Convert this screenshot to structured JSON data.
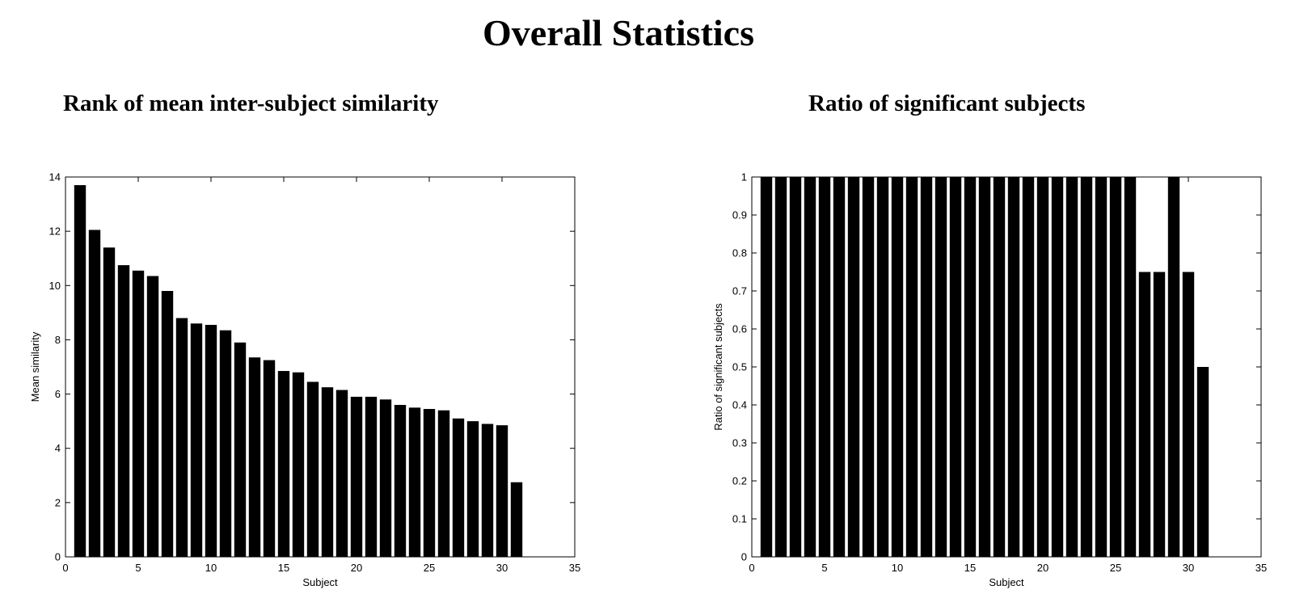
{
  "page": {
    "title": "Overall Statistics"
  },
  "chart_data": [
    {
      "type": "bar",
      "title": "Rank of mean inter-subject similarity",
      "xlabel": "Subject",
      "ylabel": "Mean similarity",
      "x": [
        1,
        2,
        3,
        4,
        5,
        6,
        7,
        8,
        9,
        10,
        11,
        12,
        13,
        14,
        15,
        16,
        17,
        18,
        19,
        20,
        21,
        22,
        23,
        24,
        25,
        26,
        27,
        28,
        29,
        30,
        31
      ],
      "values": [
        13.7,
        12.05,
        11.4,
        10.75,
        10.55,
        10.35,
        9.8,
        8.8,
        8.6,
        8.55,
        8.35,
        7.9,
        7.35,
        7.25,
        6.85,
        6.8,
        6.45,
        6.25,
        6.15,
        5.9,
        5.9,
        5.8,
        5.6,
        5.5,
        5.45,
        5.4,
        5.1,
        5.0,
        4.9,
        4.85,
        2.75
      ],
      "xlim": [
        0,
        35
      ],
      "ylim": [
        0,
        14
      ],
      "xticks": [
        0,
        5,
        10,
        15,
        20,
        25,
        30,
        35
      ],
      "yticks": [
        0,
        2,
        4,
        6,
        8,
        10,
        12,
        14
      ],
      "bar_color": "#000000"
    },
    {
      "type": "bar",
      "title": "Ratio of significant subjects",
      "xlabel": "Subject",
      "ylabel": "Ratio of significant subjects",
      "x": [
        1,
        2,
        3,
        4,
        5,
        6,
        7,
        8,
        9,
        10,
        11,
        12,
        13,
        14,
        15,
        16,
        17,
        18,
        19,
        20,
        21,
        22,
        23,
        24,
        25,
        26,
        27,
        28,
        29,
        30,
        31
      ],
      "values": [
        1,
        1,
        1,
        1,
        1,
        1,
        1,
        1,
        1,
        1,
        1,
        1,
        1,
        1,
        1,
        1,
        1,
        1,
        1,
        1,
        1,
        1,
        1,
        1,
        1,
        1,
        0.75,
        0.75,
        1,
        0.75,
        0.5
      ],
      "xlim": [
        0,
        35
      ],
      "ylim": [
        0,
        1
      ],
      "xticks": [
        0,
        5,
        10,
        15,
        20,
        25,
        30,
        35
      ],
      "yticks": [
        0,
        0.1,
        0.2,
        0.3,
        0.4,
        0.5,
        0.6,
        0.7,
        0.8,
        0.9,
        1
      ],
      "bar_color": "#000000"
    }
  ]
}
